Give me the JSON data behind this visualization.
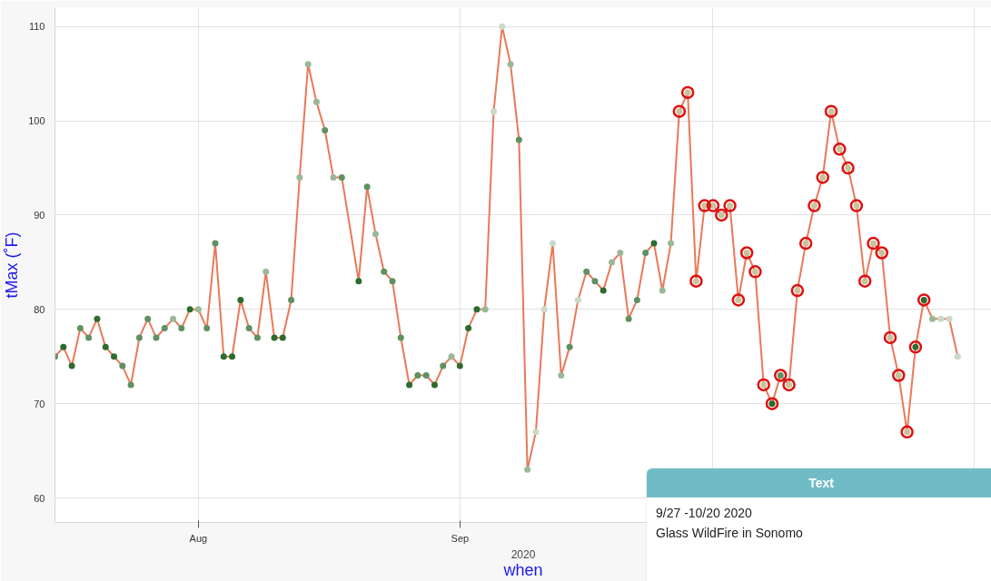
{
  "chart_data": {
    "type": "line",
    "xlabel": "when",
    "ylabel": "tMax (˚F)",
    "annotations": [
      "2020",
      "Text",
      "9/27 -10/20 2020",
      "Glass WildFire in Sonomo"
    ],
    "xlim": [
      "2020-07-15",
      "2020-11-03"
    ],
    "ylim": [
      57.4,
      112
    ],
    "xticks": [
      {
        "value": "2020-08-01",
        "label": "Aug"
      },
      {
        "value": "2020-09-01",
        "label": "Sep"
      },
      {
        "value": "2020-10-01",
        "label": null
      },
      {
        "value": "2020-11-01",
        "label": null
      }
    ],
    "yticks": [
      60,
      70,
      80,
      90,
      100,
      110
    ],
    "grid": true,
    "marker": "circle",
    "series": [
      {
        "color": "#e8795a",
        "x": [
          "2020-07-15",
          "2020-07-16",
          "2020-07-17",
          "2020-07-18",
          "2020-07-19",
          "2020-07-20",
          "2020-07-21",
          "2020-07-22",
          "2020-07-23",
          "2020-07-24",
          "2020-07-25",
          "2020-07-26",
          "2020-07-27",
          "2020-07-28",
          "2020-07-29",
          "2020-07-30",
          "2020-07-31",
          "2020-08-01",
          "2020-08-02",
          "2020-08-03",
          "2020-08-04",
          "2020-08-05",
          "2020-08-06",
          "2020-08-07",
          "2020-08-08",
          "2020-08-09",
          "2020-08-10",
          "2020-08-11",
          "2020-08-12",
          "2020-08-13",
          "2020-08-14",
          "2020-08-15",
          "2020-08-16",
          "2020-08-17",
          "2020-08-18",
          "2020-08-20",
          "2020-08-21",
          "2020-08-22",
          "2020-08-23",
          "2020-08-24",
          "2020-08-25",
          "2020-08-26",
          "2020-08-27",
          "2020-08-28",
          "2020-08-29",
          "2020-08-30",
          "2020-08-31",
          "2020-09-01",
          "2020-09-02",
          "2020-09-03",
          "2020-09-04",
          "2020-09-05",
          "2020-09-06",
          "2020-09-07",
          "2020-09-08",
          "2020-09-09",
          "2020-09-10",
          "2020-09-11",
          "2020-09-12",
          "2020-09-13",
          "2020-09-14",
          "2020-09-15",
          "2020-09-16",
          "2020-09-17",
          "2020-09-18",
          "2020-09-19",
          "2020-09-20",
          "2020-09-21",
          "2020-09-22",
          "2020-09-23",
          "2020-09-24",
          "2020-09-25",
          "2020-09-26",
          "2020-09-27",
          "2020-09-28",
          "2020-09-29",
          "2020-09-30",
          "2020-10-01",
          "2020-10-02",
          "2020-10-03",
          "2020-10-04",
          "2020-10-05",
          "2020-10-06",
          "2020-10-07",
          "2020-10-08",
          "2020-10-09",
          "2020-10-10",
          "2020-10-11",
          "2020-10-12",
          "2020-10-13",
          "2020-10-14",
          "2020-10-15",
          "2020-10-16",
          "2020-10-17",
          "2020-10-18",
          "2020-10-19",
          "2020-10-20",
          "2020-10-21",
          "2020-10-22",
          "2020-10-23",
          "2020-10-24",
          "2020-10-25",
          "2020-10-26",
          "2020-10-27",
          "2020-10-28",
          "2020-10-29",
          "2020-10-30"
        ],
        "values": [
          75,
          76,
          74,
          78,
          77,
          79,
          76,
          75,
          74,
          72,
          77,
          79,
          77,
          78,
          79,
          78,
          80,
          80,
          78,
          87,
          75,
          75,
          81,
          78,
          77,
          84,
          77,
          77,
          81,
          94,
          106,
          102,
          99,
          94,
          94,
          83,
          93,
          88,
          84,
          83,
          77,
          72,
          73,
          73,
          72,
          74,
          75,
          74,
          78,
          80,
          80,
          101,
          110,
          106,
          98,
          63,
          67,
          80,
          87,
          73,
          76,
          81,
          84,
          83,
          82,
          85,
          86,
          79,
          81,
          86,
          87,
          82,
          87,
          101,
          103,
          83,
          91,
          91,
          90,
          91,
          81,
          86,
          84,
          72,
          70,
          73,
          72,
          82,
          87,
          91,
          94,
          101,
          97,
          95,
          91,
          83,
          87,
          86,
          77,
          73,
          67,
          76,
          81,
          79,
          79,
          79,
          75
        ],
        "colors": [
          "#5f9160",
          "#2e6b2e",
          "#2e6b2e",
          "#5f9160",
          "#5f9160",
          "#2e6b2e",
          "#2e6b2e",
          "#2e6b2e",
          "#5f9160",
          "#5f9160",
          "#5f9160",
          "#5f9160",
          "#5f9160",
          "#5f9160",
          "#9ab898",
          "#5f9160",
          "#2e6b2e",
          "#9ab898",
          "#5f9160",
          "#5f9160",
          "#2e6b2e",
          "#2e6b2e",
          "#2e6b2e",
          "#5f9160",
          "#5f9160",
          "#9ab898",
          "#2e6b2e",
          "#2e6b2e",
          "#5f9160",
          "#9ab898",
          "#9ab898",
          "#9ab898",
          "#5f9160",
          "#9ab898",
          "#5f9160",
          "#2e6b2e",
          "#5f9160",
          "#9ab898",
          "#5f9160",
          "#5f9160",
          "#5f9160",
          "#2e6b2e",
          "#5f9160",
          "#5f9160",
          "#2e6b2e",
          "#5f9160",
          "#9ab898",
          "#2e6b2e",
          "#2e6b2e",
          "#2e6b2e",
          "#9ab898",
          "#ccd8c8",
          "#ccd8c8",
          "#9ab898",
          "#5f9160",
          "#9ab898",
          "#ccd8c8",
          "#ccd8c8",
          "#ccd8c8",
          "#9ab898",
          "#5f9160",
          "#ccd8c8",
          "#5f9160",
          "#5f9160",
          "#2e6b2e",
          "#9ab898",
          "#9ab898",
          "#5f9160",
          "#5f9160",
          "#5f9160",
          "#2e6b2e",
          "#9ab898",
          "#9ab898",
          "#c9c39c",
          "#c9c39c",
          "#c9c39c",
          "#c9c39c",
          "#c9c39c",
          "#c9c39c",
          "#c9c39c",
          "#c9c39c",
          "#c9c39c",
          "#c9c39c",
          "#c9c39c",
          "#2e6b2e",
          "#5f9160",
          "#c9c39c",
          "#c9c39c",
          "#c9c39c",
          "#c9c39c",
          "#c9c39c",
          "#c9c39c",
          "#c9c39c",
          "#c9c39c",
          "#c9c39c",
          "#c9c39c",
          "#c9c39c",
          "#c9c39c",
          "#c9c39c",
          "#c9c39c",
          "#c9c39c",
          "#2e6b2e",
          "#2e6b2e",
          "#9ab898",
          "#ccd8c8",
          "#ccd8c8",
          "#ccd8c8"
        ]
      },
      {
        "type": "scatter",
        "color": "#dd1111",
        "x": [
          "2020-09-27",
          "2020-09-28",
          "2020-09-29",
          "2020-09-30",
          "2020-10-01",
          "2020-10-02",
          "2020-10-03",
          "2020-10-04",
          "2020-10-05",
          "2020-10-06",
          "2020-10-07",
          "2020-10-08",
          "2020-10-09",
          "2020-10-10",
          "2020-10-11",
          "2020-10-12",
          "2020-10-13",
          "2020-10-14",
          "2020-10-15",
          "2020-10-16",
          "2020-10-17",
          "2020-10-18",
          "2020-10-19",
          "2020-10-20",
          "2020-10-21",
          "2020-10-22",
          "2020-10-23",
          "2020-10-24",
          "2020-10-25",
          "2020-10-26"
        ],
        "values": [
          101,
          103,
          83,
          91,
          91,
          90,
          91,
          81,
          86,
          84,
          72,
          70,
          73,
          72,
          82,
          87,
          91,
          94,
          101,
          97,
          95,
          91,
          83,
          87,
          86,
          77,
          73,
          67,
          76,
          81
        ]
      }
    ]
  }
}
